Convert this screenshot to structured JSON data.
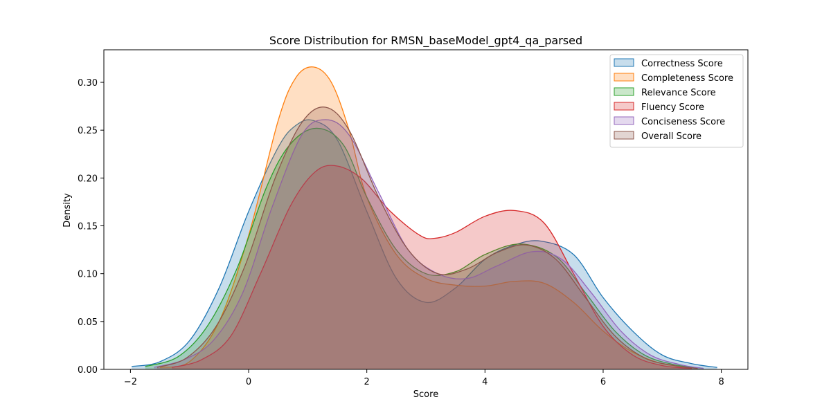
{
  "chart_data": {
    "type": "area",
    "title": "Score Distribution for RMSN_baseModel_gpt4_qa_parsed",
    "xlabel": "Score",
    "ylabel": "Density",
    "xlim": [
      -2.45,
      8.45
    ],
    "ylim": [
      0,
      0.334
    ],
    "xticks": [
      -2,
      0,
      2,
      4,
      6,
      8
    ],
    "yticks": [
      0.0,
      0.05,
      0.1,
      0.15,
      0.2,
      0.25,
      0.3
    ],
    "legend_position": "top-right",
    "series": [
      {
        "name": "Correctness Score",
        "color": "#1f77b4",
        "x": [
          -1.98,
          -1.5,
          -1.0,
          -0.5,
          0.0,
          0.5,
          0.8,
          1.1,
          1.5,
          2.0,
          2.5,
          3.0,
          3.5,
          4.0,
          4.5,
          4.95,
          5.5,
          6.0,
          6.5,
          7.0,
          7.5,
          7.93
        ],
        "y": [
          0.003,
          0.008,
          0.03,
          0.085,
          0.165,
          0.232,
          0.255,
          0.26,
          0.24,
          0.165,
          0.095,
          0.07,
          0.085,
          0.115,
          0.13,
          0.134,
          0.12,
          0.075,
          0.04,
          0.015,
          0.006,
          0.002
        ]
      },
      {
        "name": "Completeness Score",
        "color": "#ff7f0e",
        "x": [
          -1.5,
          -1.0,
          -0.5,
          0.0,
          0.5,
          0.8,
          1.1,
          1.4,
          1.7,
          2.0,
          2.5,
          3.0,
          3.5,
          4.0,
          4.5,
          5.0,
          5.5,
          6.0,
          6.5,
          7.0,
          7.5
        ],
        "y": [
          0.002,
          0.008,
          0.05,
          0.14,
          0.26,
          0.305,
          0.316,
          0.3,
          0.25,
          0.18,
          0.12,
          0.095,
          0.088,
          0.087,
          0.092,
          0.09,
          0.07,
          0.04,
          0.018,
          0.006,
          0.002
        ]
      },
      {
        "name": "Relevance Score",
        "color": "#2ca02c",
        "x": [
          -1.75,
          -1.2,
          -0.7,
          -0.2,
          0.3,
          0.7,
          1.15,
          1.6,
          2.0,
          2.5,
          3.0,
          3.5,
          4.0,
          4.6,
          5.2,
          5.7,
          6.2,
          6.7,
          7.2,
          7.7
        ],
        "y": [
          0.003,
          0.013,
          0.045,
          0.105,
          0.19,
          0.235,
          0.252,
          0.235,
          0.18,
          0.125,
          0.1,
          0.102,
          0.12,
          0.131,
          0.118,
          0.08,
          0.04,
          0.015,
          0.005,
          0.001
        ]
      },
      {
        "name": "Fluency Score",
        "color": "#d62728",
        "x": [
          -1.3,
          -0.8,
          -0.3,
          0.2,
          0.7,
          1.1,
          1.45,
          1.9,
          2.4,
          2.9,
          3.15,
          3.5,
          4.0,
          4.5,
          5.0,
          5.5,
          6.0,
          6.5,
          7.0,
          7.5
        ],
        "y": [
          0.002,
          0.01,
          0.035,
          0.1,
          0.17,
          0.205,
          0.213,
          0.2,
          0.165,
          0.14,
          0.137,
          0.143,
          0.16,
          0.166,
          0.153,
          0.1,
          0.045,
          0.015,
          0.004,
          0.001
        ]
      },
      {
        "name": "Conciseness Score",
        "color": "#9467bd",
        "x": [
          -1.6,
          -1.1,
          -0.6,
          -0.1,
          0.4,
          0.9,
          1.3,
          1.7,
          2.2,
          2.7,
          3.2,
          3.7,
          4.2,
          4.8,
          5.3,
          5.8,
          6.3,
          6.8,
          7.3,
          7.7
        ],
        "y": [
          0.002,
          0.01,
          0.03,
          0.08,
          0.17,
          0.245,
          0.261,
          0.245,
          0.185,
          0.125,
          0.1,
          0.095,
          0.108,
          0.123,
          0.115,
          0.08,
          0.04,
          0.015,
          0.005,
          0.001
        ]
      },
      {
        "name": "Overall Score",
        "color": "#8c564b",
        "x": [
          -1.55,
          -1.05,
          -0.55,
          -0.05,
          0.45,
          0.9,
          1.3,
          1.7,
          2.2,
          2.7,
          3.2,
          3.7,
          4.2,
          4.7,
          5.2,
          5.7,
          6.2,
          6.7,
          7.2,
          7.6
        ],
        "y": [
          0.002,
          0.012,
          0.045,
          0.11,
          0.2,
          0.258,
          0.274,
          0.25,
          0.18,
          0.125,
          0.1,
          0.105,
          0.122,
          0.13,
          0.115,
          0.075,
          0.035,
          0.012,
          0.004,
          0.001
        ]
      }
    ]
  }
}
